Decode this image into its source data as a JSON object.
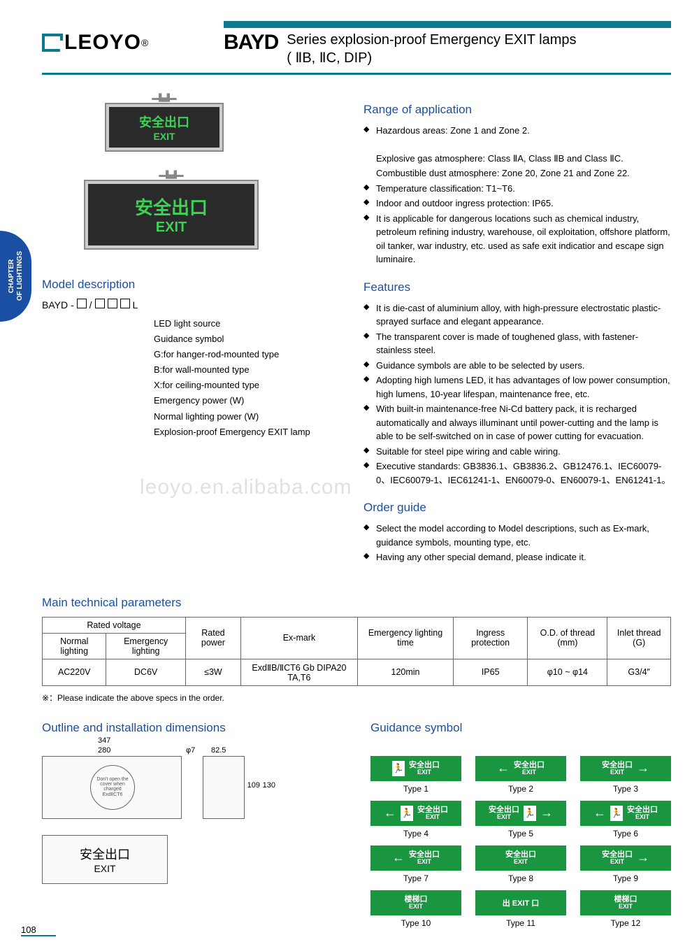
{
  "header": {
    "brand": "LEOYO",
    "series_code": "BAYD",
    "title_line1": "Series explosion-proof Emergency EXIT lamps",
    "title_line2": "( ⅡB,  ⅡC, DIP)",
    "header_bar_color": "#0b7a8f"
  },
  "side_tab": {
    "line1": "CHAPTER",
    "line2": "OF LIGHTINGS",
    "bg_color": "#1a4fa3"
  },
  "signs": {
    "cn": "安全出口",
    "en": "EXIT",
    "text_color": "#3bd354",
    "bg_color": "#2a2a2a"
  },
  "model_description": {
    "title": "Model description",
    "prefix": "BAYD -",
    "suffix": "L",
    "labels": [
      "LED light source",
      "Guidance symbol",
      "G:for hanger-rod-mounted type",
      "B:for wall-mounted type",
      "X:for ceiling-mounted type",
      "Emergency power (W)",
      "Normal lighting power (W)",
      "Explosion-proof Emergency EXIT lamp"
    ]
  },
  "range": {
    "title": "Range of application",
    "items": [
      "Hazardous areas: Zone 1 and Zone 2.",
      "Temperature classification: T1~T6.",
      "Indoor and outdoor ingress protection: IP65.",
      "It is applicable for dangerous locations such as chemical industry, petroleum refining industry, warehouse, oil exploitation, offshore platform, oil tanker, war industry, etc. used as safe exit indicatior and escape sign luminaire."
    ],
    "sub1": "Explosive gas atmosphere: Class ⅡA, Class ⅡB and Class ⅡC.",
    "sub2": "Combustible dust atmosphere: Zone 20, Zone 21 and Zone 22."
  },
  "features": {
    "title": "Features",
    "items": [
      "It is die-cast of aluminium alloy, with high-pressure electrostatic plastic-sprayed surface and elegant appearance.",
      "The transparent cover is made of toughened glass, with fastener-stainless steel.",
      "Guidance symbols are able to be selected by users.",
      "Adopting high lumens LED, it has advantages of low power consumption, high lumens, 10-year lifespan, maintenance free, etc.",
      "With built-in maintenance-free Ni-Cd battery pack, it is recharged automatically and always illuminant until power-cutting and the lamp is able to be self-switched on in case of power cutting for evacuation.",
      "Suitable for steel pipe wiring and cable wiring.",
      "Executive standards: GB3836.1、GB3836.2、GB12476.1、IEC60079-0、IEC60079-1、IEC61241-1、EN60079-0、EN60079-1、EN61241-1。"
    ]
  },
  "order_guide": {
    "title": "Order guide",
    "items": [
      "Select the model according to Model descriptions, such as Ex-mark, guidance symbols, mounting type, etc.",
      "Having any other special demand, please indicate it."
    ]
  },
  "params": {
    "title": "Main technical parameters",
    "headers": {
      "rated_voltage": "Rated voltage",
      "normal": "Normal lighting",
      "emergency": "Emergency lighting",
      "rated_power": "Rated power",
      "ex_mark": "Ex-mark",
      "em_time": "Emergency lighting time",
      "ingress": "Ingress protection",
      "od_thread": "O.D. of thread (mm)",
      "inlet": "Inlet thread (G)"
    },
    "row": {
      "normal": "AC220V",
      "emergency": "DC6V",
      "power": "≤3W",
      "ex_mark": "ExdⅡB/ⅡCT6 Gb DIPA20 TA,T6",
      "em_time": "120min",
      "ingress": "IP65",
      "od": "φ10 ~ φ14",
      "inlet": "G3/4″"
    },
    "note": "※：Please indicate the above specs in the order."
  },
  "outline": {
    "title": "Outline and installation dimensions",
    "dims": {
      "w1": "347",
      "w2": "280",
      "phi": "φ7",
      "w3": "82.5",
      "h1": "109",
      "h2": "130"
    },
    "circle_text1": "Don't open the cover when charged",
    "circle_text2": "ExdⅡCT6",
    "sign_cn": "安全出口",
    "sign_en": "EXIT"
  },
  "guidance": {
    "title": "Guidance symbol",
    "sign_bg": "#1a9640",
    "cn": "安全出口",
    "en": "EXIT",
    "types": [
      {
        "label": "Type 1",
        "runner": "left",
        "arrow": ""
      },
      {
        "label": "Type 2",
        "runner": "",
        "arrow": "left",
        "text": true
      },
      {
        "label": "Type 3",
        "runner": "",
        "arrow": "right",
        "text": true
      },
      {
        "label": "Type 4",
        "runner": "left",
        "arrow": "left",
        "text": true
      },
      {
        "label": "Type 5",
        "runner": "right",
        "arrow": "right",
        "text": true
      },
      {
        "label": "Type 6",
        "runner": "left",
        "arrow": "left",
        "text": true,
        "variant": 2
      },
      {
        "label": "Type 7",
        "runner": "",
        "arrow": "left",
        "text": true,
        "simple": true
      },
      {
        "label": "Type 8",
        "runner": "",
        "arrow": "",
        "text": true,
        "simple": true
      },
      {
        "label": "Type 9",
        "runner": "",
        "arrow": "right",
        "text": true,
        "simple": true
      },
      {
        "label": "Type 10",
        "runner": "",
        "arrow": "",
        "text": true,
        "stair": "楼梯口"
      },
      {
        "label": "Type 11",
        "runner": "",
        "arrow": "",
        "text": true,
        "exit_cn": "出 EXIT 口"
      },
      {
        "label": "Type 12",
        "runner": "",
        "arrow": "",
        "text": true,
        "stair": "楼梯口"
      }
    ]
  },
  "watermark": "leoyo.en.alibaba.com",
  "page_number": "108"
}
